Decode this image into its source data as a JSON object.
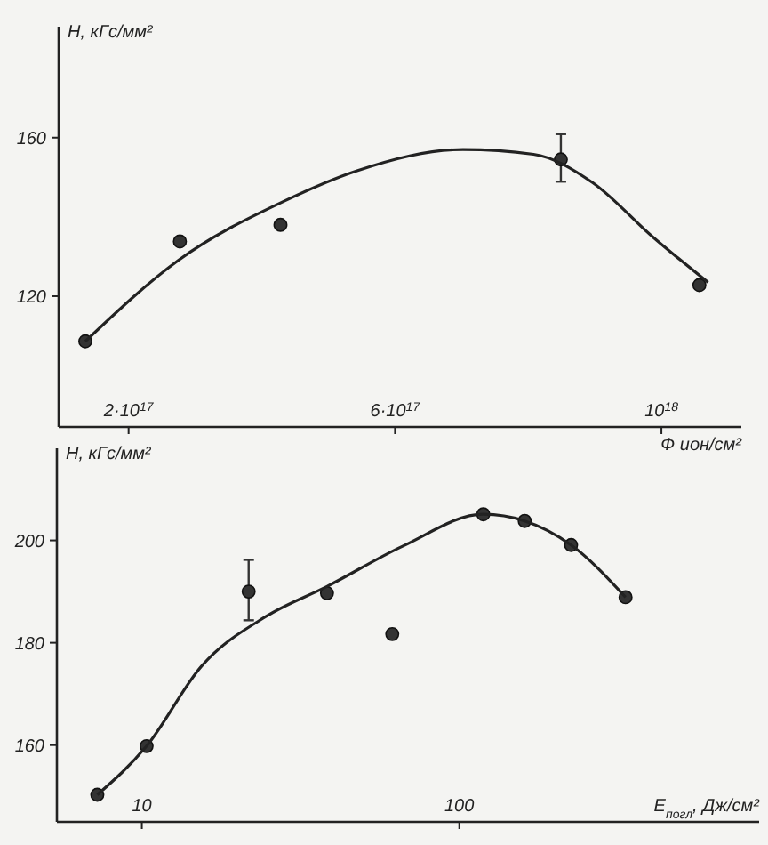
{
  "chart_data": [
    {
      "type": "scatter",
      "ylabel": "H, кГс/мм²",
      "xlabel": "Ф ион/см²",
      "xlim": [
        9.5e+16,
        1.12e+18
      ],
      "ylim": [
        87,
        188
      ],
      "xticks": [
        {
          "value": 2e+17,
          "label": "2·10$^{17}$"
        },
        {
          "value": 6e+17,
          "label": "6·10$^{17}$"
        },
        {
          "value": 1e+18,
          "label": "10$^{18}$"
        }
      ],
      "yticks": [
        120,
        160
      ],
      "grid": false,
      "series": [
        {
          "type": "scatter",
          "marker": "circle",
          "color": "#333333",
          "x": [
            1.35e+17,
            2.77e+17,
            4.28e+17,
            8.49e+17,
            1.057e+18
          ],
          "values": [
            108.6,
            133.8,
            138,
            154.5,
            122.8
          ],
          "errors": [
            null,
            null,
            null,
            [
              148.9,
              160.9
            ],
            null
          ]
        },
        {
          "type": "line",
          "color": "#222222",
          "x": [
            1.35e+17,
            2.75e+17,
            4.35e+17,
            5.42e+17,
            7.02e+17,
            8.08e+17,
            8.97e+17,
            9.86e+17,
            1.07e+18
          ],
          "values": [
            108.6,
            129.1,
            144.1,
            151.6,
            157,
            155.8,
            148.6,
            135.1,
            123.5
          ]
        }
      ]
    },
    {
      "type": "scatter",
      "ylabel": "H, кГс/мм²",
      "xlabel": "E$_{погл}$, Дж/см²",
      "log": "x",
      "xlim": [
        5.4,
        880
      ],
      "ylim": [
        145,
        218
      ],
      "xticks": [
        10,
        100
      ],
      "yticks": [
        160,
        180,
        200
      ],
      "grid": false,
      "series": [
        {
          "type": "scatter",
          "marker": "circle",
          "color": "#333333",
          "x": [
            7.24,
            10.35,
            21.7,
            38.3,
            61.5,
            119,
            160.7,
            225,
            334
          ],
          "values": [
            150.3,
            159.8,
            190,
            189.7,
            181.7,
            205.1,
            203.8,
            199.1,
            188.9
          ],
          "errors": [
            null,
            null,
            [
              184.4,
              196.2
            ],
            null,
            null,
            null,
            null,
            null,
            null
          ]
        },
        {
          "type": "line",
          "color": "#222222",
          "x": [
            7.24,
            10.35,
            15.4,
            24.7,
            38.3,
            66.5,
            119,
            160.7,
            225,
            334
          ],
          "values": [
            150.3,
            159.8,
            175.4,
            185.2,
            191,
            198.9,
            205.1,
            203.8,
            199.1,
            188.9
          ]
        }
      ]
    }
  ]
}
